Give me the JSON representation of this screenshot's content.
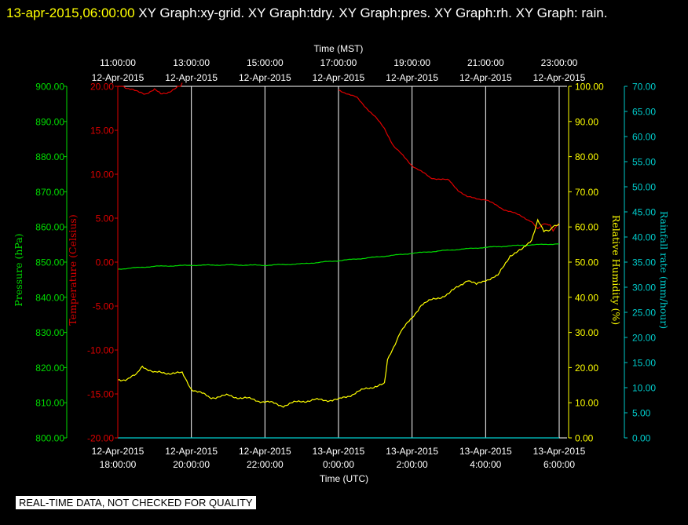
{
  "header": {
    "timestamp": "13-apr-2015,06:00:00",
    "graphs": "  XY Graph:xy-grid.  XY Graph:tdry.  XY Graph:pres.  XY Graph:rh.  XY Graph: rain."
  },
  "footer_notice": "REAL-TIME DATA, NOT CHECKED FOR QUALITY",
  "colors": {
    "background": "#000000",
    "grid": "#ffffff",
    "pressure": "#00dd00",
    "temperature": "#dd0000",
    "humidity": "#ffff00",
    "rainfall": "#00cccc"
  },
  "chart_data": {
    "type": "line",
    "grid": true,
    "top_axis": {
      "title": "Time (MST)",
      "ticks": [
        {
          "time": "11:00:00",
          "date": "12-Apr-2015"
        },
        {
          "time": "13:00:00",
          "date": "12-Apr-2015"
        },
        {
          "time": "15:00:00",
          "date": "12-Apr-2015"
        },
        {
          "time": "17:00:00",
          "date": "12-Apr-2015"
        },
        {
          "time": "19:00:00",
          "date": "12-Apr-2015"
        },
        {
          "time": "21:00:00",
          "date": "12-Apr-2015"
        },
        {
          "time": "23:00:00",
          "date": "12-Apr-2015"
        }
      ]
    },
    "bottom_axis": {
      "title": "Time (UTC)",
      "ticks": [
        {
          "date": "12-Apr-2015",
          "time": "18:00:00"
        },
        {
          "date": "12-Apr-2015",
          "time": "20:00:00"
        },
        {
          "date": "12-Apr-2015",
          "time": "22:00:00"
        },
        {
          "date": "13-Apr-2015",
          "time": "0:00:00"
        },
        {
          "date": "13-Apr-2015",
          "time": "2:00:00"
        },
        {
          "date": "13-Apr-2015",
          "time": "4:00:00"
        },
        {
          "date": "13-Apr-2015",
          "time": "6:00:00"
        }
      ],
      "range_utc": [
        "12-Apr-2015 18:00:00",
        "13-Apr-2015 06:00:00"
      ]
    },
    "axes": {
      "pressure": {
        "label": "Pressure (hPa)",
        "min": 800,
        "max": 900,
        "ticks": [
          "800.00",
          "810.00",
          "820.00",
          "830.00",
          "840.00",
          "850.00",
          "860.00",
          "870.00",
          "880.00",
          "890.00",
          "900.00"
        ]
      },
      "temperature": {
        "label": "Temperature (Celsius)",
        "min": -20,
        "max": 20,
        "ticks": [
          "-20.00",
          "-15.00",
          "-10.00",
          "-5.00",
          "0.00",
          "5.00",
          "10.00",
          "15.00",
          "20.00"
        ]
      },
      "humidity": {
        "label": "Relative Humidity (%)",
        "min": 0,
        "max": 100,
        "ticks": [
          "0.00",
          "10.00",
          "20.00",
          "30.00",
          "40.00",
          "50.00",
          "60.00",
          "70.00",
          "80.00",
          "90.00",
          "100.00"
        ]
      },
      "rainfall": {
        "label": "Rainfall rate (mm/hour)",
        "min": 0,
        "max": 70,
        "ticks": [
          "0.00",
          "5.00",
          "10.00",
          "15.00",
          "20.00",
          "25.00",
          "30.00",
          "35.00",
          "40.00",
          "45.00",
          "50.00",
          "55.00",
          "60.00",
          "65.00",
          "70.00"
        ]
      }
    },
    "series": [
      {
        "key": "pressure",
        "points": [
          [
            "12-Apr-2015 18:00",
            848.0
          ],
          [
            "12-Apr-2015 19:00",
            848.8
          ],
          [
            "12-Apr-2015 20:00",
            849.1
          ],
          [
            "12-Apr-2015 21:00",
            849.2
          ],
          [
            "12-Apr-2015 22:00",
            849.1
          ],
          [
            "12-Apr-2015 23:00",
            849.5
          ],
          [
            "13-Apr-2015 00:00",
            850.4
          ],
          [
            "13-Apr-2015 01:00",
            851.4
          ],
          [
            "13-Apr-2015 02:00",
            852.5
          ],
          [
            "13-Apr-2015 03:00",
            853.4
          ],
          [
            "13-Apr-2015 04:00",
            854.2
          ],
          [
            "13-Apr-2015 05:00",
            854.8
          ],
          [
            "13-Apr-2015 06:00",
            855.2
          ]
        ]
      },
      {
        "key": "temperature",
        "points": [
          [
            "12-Apr-2015 18:00",
            20.5
          ],
          [
            "12-Apr-2015 18:15",
            19.8
          ],
          [
            "12-Apr-2015 18:30",
            19.4
          ],
          [
            "12-Apr-2015 18:45",
            19.2
          ],
          [
            "12-Apr-2015 19:00",
            19.6
          ],
          [
            "12-Apr-2015 19:10",
            19.1
          ],
          [
            "12-Apr-2015 19:20",
            19.3
          ],
          [
            "12-Apr-2015 19:35",
            19.8
          ],
          [
            "12-Apr-2015 19:45",
            20.4
          ],
          [
            "13-Apr-2015 00:00",
            19.6
          ],
          [
            "13-Apr-2015 00:30",
            18.7
          ],
          [
            "13-Apr-2015 01:00",
            16.5
          ],
          [
            "13-Apr-2015 01:15",
            15.2
          ],
          [
            "13-Apr-2015 01:30",
            13.2
          ],
          [
            "13-Apr-2015 02:00",
            11.0
          ],
          [
            "13-Apr-2015 02:30",
            9.6
          ],
          [
            "13-Apr-2015 03:00",
            9.3
          ],
          [
            "13-Apr-2015 03:15",
            8.2
          ],
          [
            "13-Apr-2015 03:30",
            7.4
          ],
          [
            "13-Apr-2015 04:00",
            7.1
          ],
          [
            "13-Apr-2015 04:30",
            6.0
          ],
          [
            "13-Apr-2015 05:00",
            5.2
          ],
          [
            "13-Apr-2015 05:15",
            4.6
          ],
          [
            "13-Apr-2015 05:25",
            3.7
          ],
          [
            "13-Apr-2015 05:35",
            4.4
          ],
          [
            "13-Apr-2015 05:45",
            4.3
          ],
          [
            "13-Apr-2015 05:50",
            3.6
          ],
          [
            "13-Apr-2015 06:00",
            4.4
          ]
        ]
      },
      {
        "key": "humidity",
        "points": [
          [
            "12-Apr-2015 18:00",
            16.5
          ],
          [
            "12-Apr-2015 18:15",
            16.8
          ],
          [
            "12-Apr-2015 18:30",
            17.8
          ],
          [
            "12-Apr-2015 18:40",
            20.5
          ],
          [
            "12-Apr-2015 19:00",
            18.5
          ],
          [
            "12-Apr-2015 19:30",
            18.5
          ],
          [
            "12-Apr-2015 19:45",
            18.3
          ],
          [
            "12-Apr-2015 20:00",
            14.0
          ],
          [
            "12-Apr-2015 20:30",
            11.5
          ],
          [
            "12-Apr-2015 21:00",
            12.0
          ],
          [
            "12-Apr-2015 21:30",
            11.2
          ],
          [
            "12-Apr-2015 22:00",
            10.3
          ],
          [
            "12-Apr-2015 22:30",
            9.2
          ],
          [
            "12-Apr-2015 23:00",
            10.5
          ],
          [
            "12-Apr-2015 23:30",
            10.8
          ],
          [
            "13-Apr-2015 00:00",
            10.8
          ],
          [
            "13-Apr-2015 00:30",
            13.0
          ],
          [
            "13-Apr-2015 01:00",
            14.8
          ],
          [
            "13-Apr-2015 01:15",
            15.2
          ],
          [
            "13-Apr-2015 01:20",
            22.0
          ],
          [
            "13-Apr-2015 01:40",
            30.0
          ],
          [
            "13-Apr-2015 02:00",
            34.0
          ],
          [
            "13-Apr-2015 02:15",
            38.0
          ],
          [
            "13-Apr-2015 02:30",
            39.0
          ],
          [
            "13-Apr-2015 03:00",
            41.0
          ],
          [
            "13-Apr-2015 03:30",
            45.0
          ],
          [
            "13-Apr-2015 03:45",
            43.5
          ],
          [
            "13-Apr-2015 04:00",
            45.0
          ],
          [
            "13-Apr-2015 04:20",
            46.0
          ],
          [
            "13-Apr-2015 04:40",
            52.0
          ],
          [
            "13-Apr-2015 05:00",
            53.5
          ],
          [
            "13-Apr-2015 05:15",
            56.5
          ],
          [
            "13-Apr-2015 05:25",
            62.0
          ],
          [
            "13-Apr-2015 05:35",
            58.5
          ],
          [
            "13-Apr-2015 05:45",
            59.0
          ],
          [
            "13-Apr-2015 05:50",
            60.5
          ],
          [
            "13-Apr-2015 06:00",
            61.0
          ]
        ]
      },
      {
        "key": "rainfall",
        "points": [
          [
            "12-Apr-2015 18:00",
            0
          ],
          [
            "13-Apr-2015 06:00",
            0
          ]
        ]
      }
    ]
  }
}
